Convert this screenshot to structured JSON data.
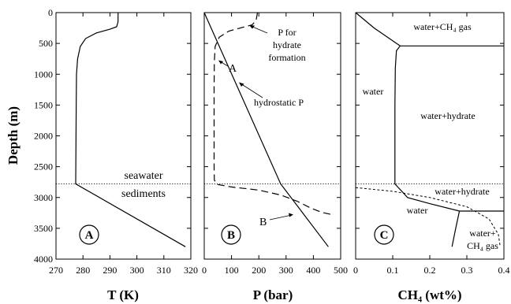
{
  "chart_data": [
    {
      "type": "line",
      "panel_label": "A",
      "xlabel": "T (K)",
      "ylabel": "Depth (m)",
      "xlim": [
        270,
        320
      ],
      "ylim": [
        4000,
        0
      ],
      "x_ticks": [
        "270",
        "280",
        "290",
        "300",
        "310",
        "320"
      ],
      "y_ticks": [
        "0",
        "500",
        "1000",
        "1500",
        "2000",
        "2500",
        "3000",
        "3500",
        "4000"
      ],
      "series": [
        {
          "points": [
            [
              293,
              0
            ],
            [
              293,
              150
            ],
            [
              292.5,
              230
            ],
            [
              290,
              270
            ],
            [
              285,
              330
            ],
            [
              281,
              420
            ],
            [
              279,
              550
            ],
            [
              278,
              750
            ],
            [
              277.6,
              1000
            ],
            [
              277.5,
              1400
            ],
            [
              277.3,
              2780
            ],
            [
              277.3,
              2780
            ],
            [
              318,
              3800
            ]
          ]
        }
      ],
      "boundary_depth": 2780,
      "annotations": [
        "seawater",
        "sediments"
      ]
    },
    {
      "type": "line",
      "panel_label": "B",
      "xlabel": "P (bar)",
      "xlim": [
        0,
        500
      ],
      "ylim": [
        4000,
        0
      ],
      "x_ticks": [
        "0",
        "100",
        "200",
        "300",
        "400",
        "500"
      ],
      "series": [
        {
          "points": [
            [
              0,
              0
            ],
            [
              280,
              2780
            ],
            [
              455,
              3800
            ]
          ]
        },
        {
          "points": [
            [
              195,
              0
            ],
            [
              190,
              130
            ],
            [
              175,
              200
            ],
            [
              140,
              240
            ],
            [
              90,
              300
            ],
            [
              55,
              400
            ],
            [
              40,
              550
            ],
            [
              37,
              800
            ],
            [
              36,
              1200
            ],
            [
              36,
              2500
            ],
            [
              37,
              2720
            ],
            [
              50,
              2790
            ],
            [
              100,
              2830
            ],
            [
              200,
              2880
            ],
            [
              280,
              2960
            ],
            [
              340,
              3060
            ],
            [
              390,
              3170
            ],
            [
              430,
              3240
            ],
            [
              470,
              3280
            ]
          ]
        }
      ],
      "boundary_depth": 2780,
      "annotations": [
        "P for",
        "hydrate",
        "formation",
        "A",
        "hydrostatic P",
        "B"
      ]
    },
    {
      "type": "line",
      "panel_label": "C",
      "xlabel": "CH₄ (wt%)",
      "xlim": [
        0,
        0.4
      ],
      "ylim": [
        4000,
        0
      ],
      "x_ticks": [
        "0",
        "0.1",
        "0.2",
        "0.3",
        "0.4"
      ],
      "series": [
        {
          "points": [
            [
              0,
              0
            ],
            [
              0.05,
              250
            ],
            [
              0.12,
              540
            ],
            [
              0.11,
              620
            ],
            [
              0.107,
              900
            ],
            [
              0.106,
              1500
            ],
            [
              0.106,
              2780
            ],
            [
              0.14,
              3000
            ],
            [
              0.2,
              3100
            ],
            [
              0.28,
              3220
            ]
          ]
        },
        {
          "points": [
            [
              0.12,
              540
            ],
            [
              0.4,
              540
            ]
          ]
        },
        {
          "points": [
            [
              0.28,
              3220
            ],
            [
              0.4,
              3220
            ]
          ]
        },
        {
          "points": [
            [
              0.28,
              3220
            ],
            [
              0.27,
              3500
            ],
            [
              0.26,
              3800
            ]
          ]
        },
        {
          "points": [
            [
              0,
              2840
            ],
            [
              0.1,
              2900
            ],
            [
              0.2,
              3000
            ],
            [
              0.3,
              3150
            ],
            [
              0.36,
              3350
            ],
            [
              0.385,
              3600
            ],
            [
              0.39,
              3800
            ]
          ]
        }
      ],
      "boundary_depth": 2780,
      "annotations": [
        "water+CH₄ gas",
        "water",
        "water+hydrate",
        "water+hydrate",
        "water",
        "water+",
        "CH₄ gas"
      ]
    }
  ]
}
